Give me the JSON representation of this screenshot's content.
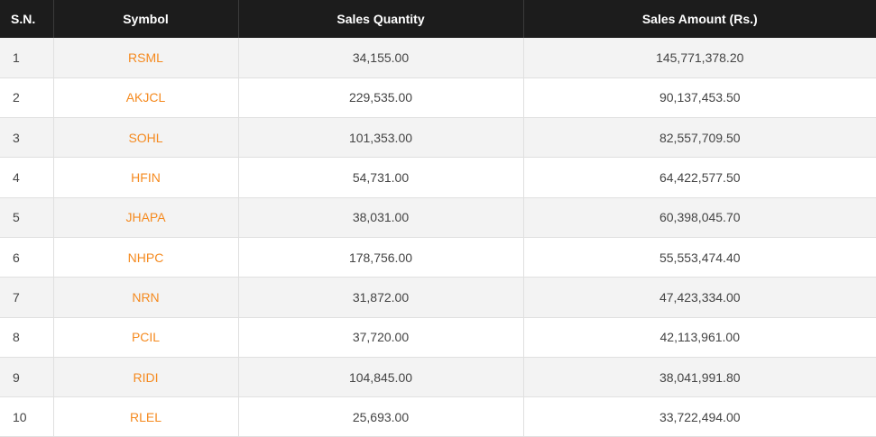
{
  "table": {
    "headers": {
      "sn": "S.N.",
      "symbol": "Symbol",
      "qty": "Sales Quantity",
      "amount": "Sales Amount (Rs.)"
    },
    "rows": [
      {
        "sn": "1",
        "symbol": "RSML",
        "qty": "34,155.00",
        "amount": "145,771,378.20"
      },
      {
        "sn": "2",
        "symbol": "AKJCL",
        "qty": "229,535.00",
        "amount": "90,137,453.50"
      },
      {
        "sn": "3",
        "symbol": "SOHL",
        "qty": "101,353.00",
        "amount": "82,557,709.50"
      },
      {
        "sn": "4",
        "symbol": "HFIN",
        "qty": "54,731.00",
        "amount": "64,422,577.50"
      },
      {
        "sn": "5",
        "symbol": "JHAPA",
        "qty": "38,031.00",
        "amount": "60,398,045.70"
      },
      {
        "sn": "6",
        "symbol": "NHPC",
        "qty": "178,756.00",
        "amount": "55,553,474.40"
      },
      {
        "sn": "7",
        "symbol": "NRN",
        "qty": "31,872.00",
        "amount": "47,423,334.00"
      },
      {
        "sn": "8",
        "symbol": "PCIL",
        "qty": "37,720.00",
        "amount": "42,113,961.00"
      },
      {
        "sn": "9",
        "symbol": "RIDI",
        "qty": "104,845.00",
        "amount": "38,041,991.80"
      },
      {
        "sn": "10",
        "symbol": "RLEL",
        "qty": "25,693.00",
        "amount": "33,722,494.00"
      }
    ]
  },
  "colors": {
    "header_bg": "#1c1c1c",
    "symbol_link": "#f58a1f",
    "stripe": "#f3f3f3"
  }
}
